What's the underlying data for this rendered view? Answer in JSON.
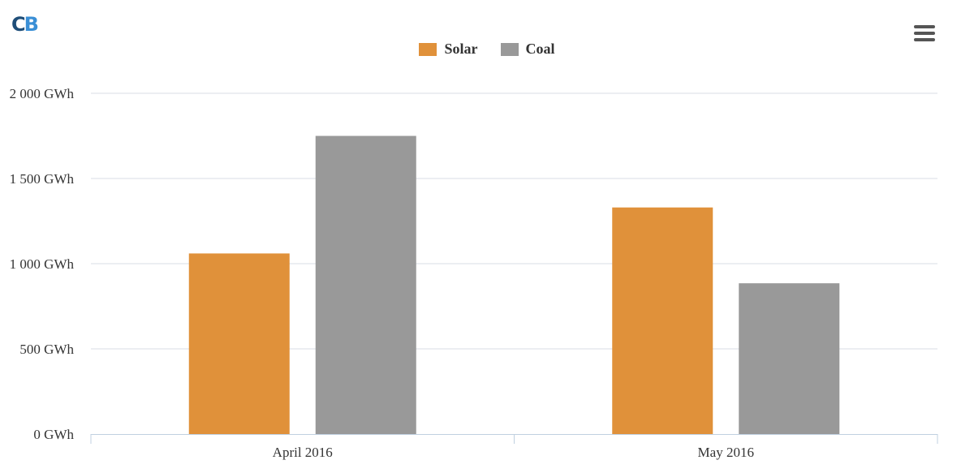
{
  "brand": {
    "logo_c": "C",
    "logo_b": "B"
  },
  "menu": {
    "icon": "hamburger-menu-icon"
  },
  "colors": {
    "solar": "#e0913a",
    "coal": "#999999",
    "grid": "#d8dde6",
    "axis": "#c0d0e0"
  },
  "chart_data": {
    "type": "bar",
    "categories": [
      "April 2016",
      "May 2016"
    ],
    "series": [
      {
        "name": "Solar",
        "values": [
          1060,
          1330
        ]
      },
      {
        "name": "Coal",
        "values": [
          1750,
          885
        ]
      }
    ],
    "ylim": [
      0,
      2000
    ],
    "yticks": [
      0,
      500,
      1000,
      1500,
      2000
    ],
    "ytick_labels": [
      "0 GWh",
      "500 GWh",
      "1 000 GWh",
      "1 500 GWh",
      "2 000 GWh"
    ],
    "legend_position": "top-center",
    "grid": true
  }
}
